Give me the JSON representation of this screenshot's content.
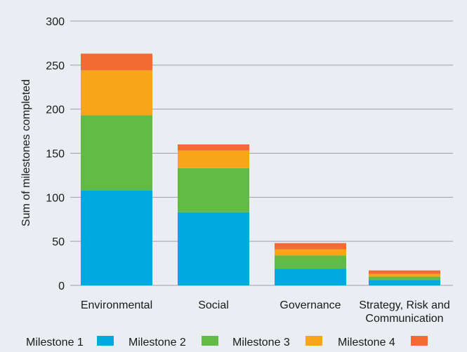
{
  "chart_data": {
    "type": "bar",
    "stacked": true,
    "categories": [
      "Environmental",
      "Social",
      "Governance",
      "Strategy, Risk and Communication"
    ],
    "category_lines": [
      [
        "Environmental"
      ],
      [
        "Social"
      ],
      [
        "Governance"
      ],
      [
        "Strategy, Risk and",
        "Communication"
      ]
    ],
    "series": [
      {
        "name": "Milestone 1",
        "color": "#00a9e0",
        "values": [
          108,
          83,
          19,
          6
        ]
      },
      {
        "name": "Milestone 2",
        "color": "#62bb46",
        "values": [
          85,
          50,
          15,
          4
        ]
      },
      {
        "name": "Milestone 3",
        "color": "#f9a51a",
        "values": [
          51,
          20,
          7,
          3
        ]
      },
      {
        "name": "Milestone 4",
        "color": "#f26b35",
        "values": [
          19,
          7,
          7,
          4
        ]
      }
    ],
    "title": "",
    "xlabel": "",
    "ylabel": "Sum of milestones completed",
    "ylim": [
      0,
      300
    ],
    "yticks": [
      0,
      50,
      100,
      150,
      200,
      250,
      300
    ],
    "grid": true,
    "legend_position": "bottom"
  },
  "colors": {
    "background": "#eaedf2",
    "gridline": "#9aa1aa"
  }
}
